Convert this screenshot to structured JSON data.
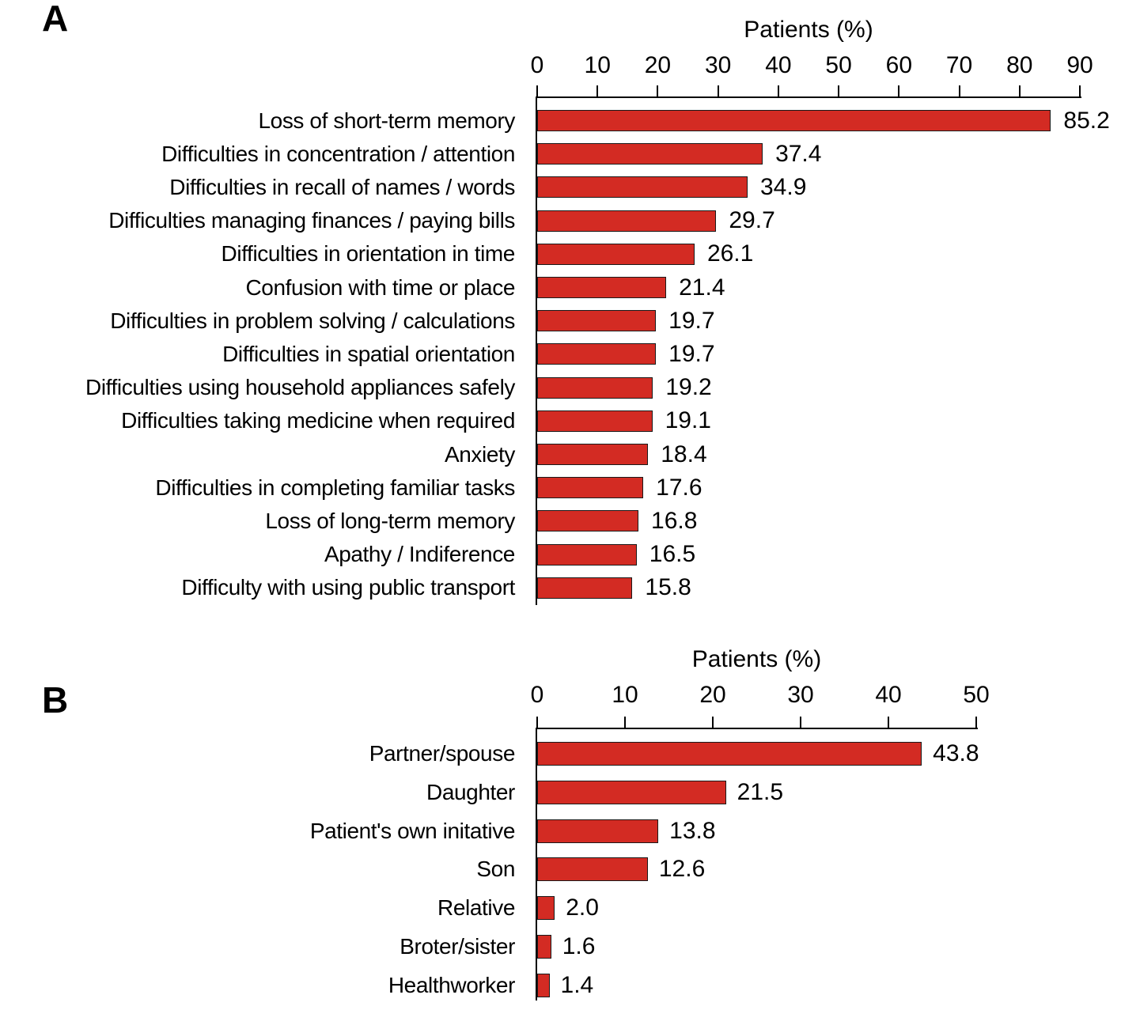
{
  "figure": {
    "description": "Two-panel horizontal bar chart figure",
    "panel_a_letter": "A",
    "panel_b_letter": "B"
  },
  "chart_data": [
    {
      "type": "bar",
      "orientation": "horizontal",
      "panel_label": "A",
      "title": "Patients (%)",
      "xlabel": "Patients (%)",
      "ylabel": "",
      "xlim": [
        0,
        90
      ],
      "xticks": [
        0,
        10,
        20,
        30,
        40,
        50,
        60,
        70,
        80,
        90
      ],
      "grid": false,
      "legend": "none",
      "bar_color": "#d32b23",
      "bar_border": "#1a1a1a",
      "categories": [
        "Loss of short-term memory",
        "Difficulties in concentration / attention",
        "Difficulties in recall of names / words",
        "Difficulties managing finances / paying bills",
        "Difficulties in orientation in time",
        "Confusion with time or place",
        "Difficulties in problem solving / calculations",
        "Difficulties in spatial orientation",
        "Difficulties using household appliances safely",
        "Difficulties taking medicine when required",
        "Anxiety",
        "Difficulties in completing familiar tasks",
        "Loss of long-term memory",
        "Apathy / Indiference",
        "Difficulty with using public transport"
      ],
      "values": [
        85.2,
        37.4,
        34.9,
        29.7,
        26.1,
        21.4,
        19.7,
        19.7,
        19.2,
        19.1,
        18.4,
        17.6,
        16.8,
        16.5,
        15.8
      ],
      "value_labels": [
        "85.2",
        "37.4",
        "34.9",
        "29.7",
        "26.1",
        "21.4",
        "19.7",
        "19.7",
        "19.2",
        "19.1",
        "18.4",
        "17.6",
        "16.8",
        "16.5",
        "15.8"
      ]
    },
    {
      "type": "bar",
      "orientation": "horizontal",
      "panel_label": "B",
      "title": "Patients (%)",
      "xlabel": "Patients (%)",
      "ylabel": "",
      "xlim": [
        0,
        50
      ],
      "xticks": [
        0,
        10,
        20,
        30,
        40,
        50
      ],
      "grid": false,
      "legend": "none",
      "bar_color": "#d32b23",
      "bar_border": "#1a1a1a",
      "categories": [
        "Partner/spouse",
        "Daughter",
        "Patient's own initative",
        "Son",
        "Relative",
        "Broter/sister",
        "Healthworker"
      ],
      "values": [
        43.8,
        21.5,
        13.8,
        12.6,
        2.0,
        1.6,
        1.4
      ],
      "value_labels": [
        "43.8",
        "21.5",
        "13.8",
        "12.6",
        "2.0",
        "1.6",
        "1.4"
      ]
    }
  ],
  "colors": {
    "bar_fill": "#d32b23",
    "bar_outline": "#1a1a1a",
    "axis": "#000000",
    "text": "#000000",
    "background": "#ffffff"
  }
}
